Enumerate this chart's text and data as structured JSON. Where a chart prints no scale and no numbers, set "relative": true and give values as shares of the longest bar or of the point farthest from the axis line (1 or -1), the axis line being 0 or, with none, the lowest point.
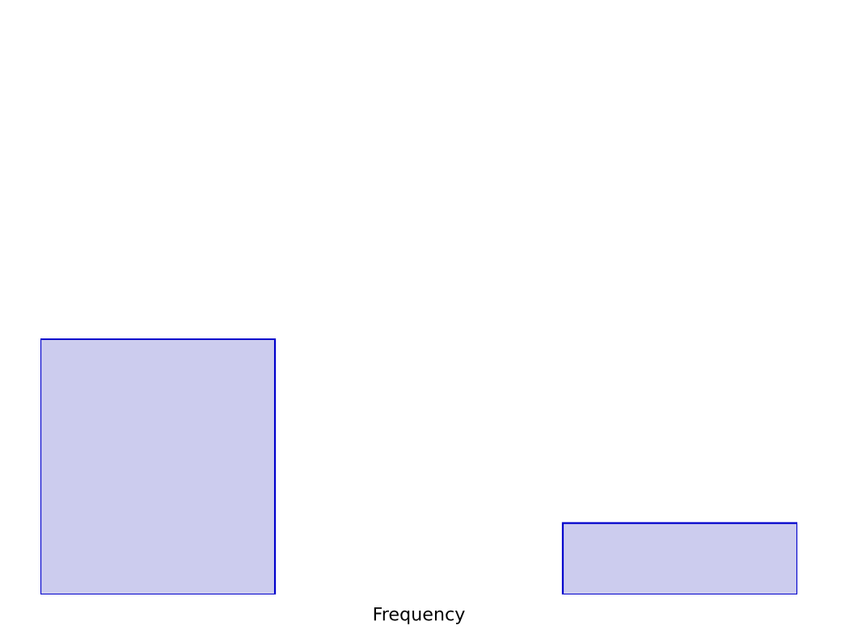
{
  "chart_data": {
    "type": "bar",
    "relative": true,
    "xlabel": "Frequency",
    "categories": [
      null,
      null
    ],
    "values": [
      1,
      0.28
    ],
    "color": "#ccccee"
  }
}
